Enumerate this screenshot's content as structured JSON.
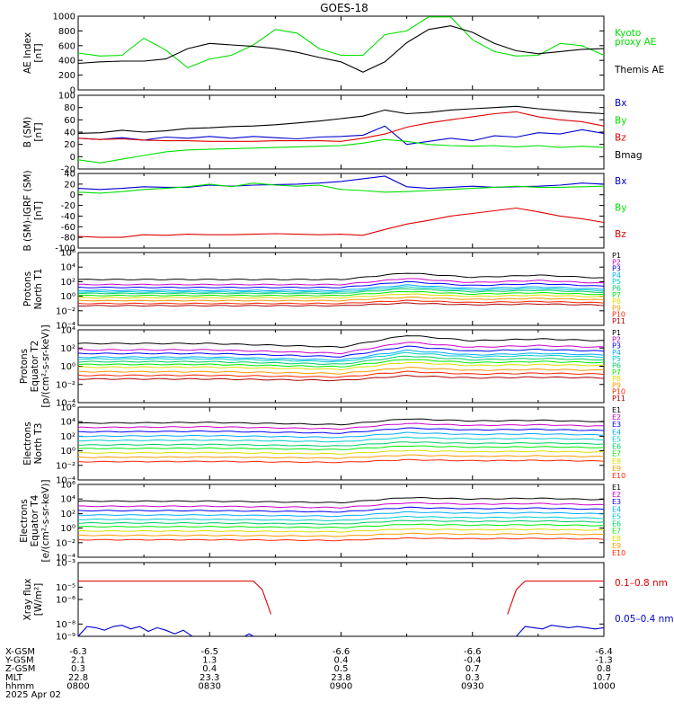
{
  "title": "GOES-18",
  "colors": {
    "black": "#000000",
    "blue": "#0000d0",
    "green": "#00e000",
    "red": "#e00000",
    "p": [
      "#000000",
      "#cc00cc",
      "#0000ff",
      "#00aaff",
      "#00cccc",
      "#00cc66",
      "#00ee00",
      "#dddd00",
      "#ff9900",
      "#ff2200",
      "#aa0000"
    ],
    "e": [
      "#000000",
      "#cc00cc",
      "#0000ff",
      "#00aaff",
      "#00cccc",
      "#00cc66",
      "#00ee00",
      "#dddd00",
      "#ff9900",
      "#ff2200",
      "#aa0000"
    ]
  },
  "chart_data": [
    {
      "type": "line",
      "panel": "ae",
      "log": false,
      "ylabel": [
        "AE Index",
        "[nT]"
      ],
      "ylim": [
        0,
        1000
      ],
      "ticks": [
        {
          "v": 0,
          "t": "0"
        },
        {
          "v": 200,
          "t": "200"
        },
        {
          "v": 400,
          "t": "400"
        },
        {
          "v": 600,
          "t": "600"
        },
        {
          "v": 800,
          "t": "800"
        },
        {
          "v": 1000,
          "t": "1000"
        }
      ],
      "legend": [
        {
          "text": "Kyoto",
          "color": "#00e000"
        },
        {
          "text": "proxy AE",
          "color": "#00e000"
        },
        {
          "text": "Themis AE",
          "color": "#000000"
        }
      ],
      "x": [
        0,
        5,
        10,
        15,
        20,
        25,
        30,
        35,
        40,
        45,
        50,
        55,
        60,
        65,
        70,
        75,
        80,
        85,
        90,
        95,
        100,
        105,
        110,
        115,
        120
      ],
      "series": [
        {
          "name": "Kyoto proxy AE",
          "color": "#00e000",
          "values": [
            500,
            460,
            470,
            700,
            540,
            300,
            420,
            470,
            610,
            820,
            770,
            560,
            470,
            470,
            750,
            800,
            990,
            990,
            680,
            520,
            460,
            470,
            630,
            600,
            470
          ]
        },
        {
          "name": "Themis AE",
          "color": "#000000",
          "values": [
            360,
            380,
            390,
            390,
            420,
            560,
            630,
            610,
            590,
            560,
            510,
            440,
            380,
            240,
            380,
            640,
            820,
            870,
            780,
            630,
            530,
            490,
            520,
            550,
            560
          ]
        }
      ]
    },
    {
      "type": "line",
      "panel": "bsm",
      "log": false,
      "ylabel": [
        "B (SM)",
        "[nT]"
      ],
      "ylim": [
        -20,
        100
      ],
      "ticks": [
        {
          "v": -20,
          "t": "-20"
        },
        {
          "v": 0,
          "t": "0"
        },
        {
          "v": 20,
          "t": "20"
        },
        {
          "v": 40,
          "t": "40"
        },
        {
          "v": 60,
          "t": "60"
        },
        {
          "v": 80,
          "t": "80"
        },
        {
          "v": 100,
          "t": "100"
        }
      ],
      "legend": [
        {
          "text": "Bx",
          "color": "#0000d0"
        },
        {
          "text": "By",
          "color": "#00e000"
        },
        {
          "text": "Bz",
          "color": "#e00000"
        },
        {
          "text": "Bmag",
          "color": "#000000"
        }
      ],
      "x": [
        0,
        5,
        10,
        15,
        20,
        25,
        30,
        35,
        40,
        45,
        50,
        55,
        60,
        65,
        70,
        75,
        80,
        85,
        90,
        95,
        100,
        105,
        110,
        115,
        120
      ],
      "series": [
        {
          "name": "Bx",
          "color": "#0000d0",
          "values": [
            30,
            28,
            31,
            27,
            32,
            30,
            33,
            30,
            33,
            31,
            29,
            32,
            33,
            35,
            50,
            20,
            25,
            30,
            26,
            34,
            32,
            39,
            37,
            44,
            38
          ]
        },
        {
          "name": "By",
          "color": "#00e000",
          "values": [
            -5,
            -10,
            -4,
            2,
            8,
            11,
            12,
            13,
            14,
            15,
            16,
            17,
            18,
            22,
            28,
            25,
            20,
            18,
            17,
            18,
            16,
            18,
            15,
            17,
            15
          ]
        },
        {
          "name": "Bz",
          "color": "#e00000",
          "values": [
            30,
            28,
            29,
            27,
            26,
            26,
            25,
            25,
            25,
            26,
            26,
            26,
            25,
            30,
            37,
            48,
            55,
            60,
            65,
            70,
            73,
            65,
            60,
            57,
            50
          ]
        },
        {
          "name": "Bmag",
          "color": "#000000",
          "values": [
            38,
            39,
            43,
            40,
            42,
            46,
            47,
            49,
            50,
            52,
            55,
            58,
            62,
            66,
            76,
            70,
            72,
            76,
            78,
            80,
            82,
            78,
            75,
            72,
            70
          ]
        }
      ]
    },
    {
      "type": "line",
      "panel": "bigrf",
      "log": false,
      "ylabel": [
        "B (SM)-IGRF (SM)",
        "[nT]"
      ],
      "ylim": [
        -100,
        40
      ],
      "ticks": [
        {
          "v": -100,
          "t": "-100"
        },
        {
          "v": -80,
          "t": "-80"
        },
        {
          "v": -60,
          "t": "-60"
        },
        {
          "v": -40,
          "t": "-40"
        },
        {
          "v": -20,
          "t": "-20"
        },
        {
          "v": 0,
          "t": "0"
        },
        {
          "v": 20,
          "t": "20"
        },
        {
          "v": 40,
          "t": "40"
        }
      ],
      "legend": [
        {
          "text": "Bx",
          "color": "#0000d0"
        },
        {
          "text": "By",
          "color": "#00e000"
        },
        {
          "text": "Bz",
          "color": "#e00000"
        }
      ],
      "x": [
        0,
        5,
        10,
        15,
        20,
        25,
        30,
        35,
        40,
        45,
        50,
        55,
        60,
        65,
        70,
        75,
        80,
        85,
        90,
        95,
        100,
        105,
        110,
        115,
        120
      ],
      "series": [
        {
          "name": "Bx",
          "color": "#0000d0",
          "values": [
            12,
            10,
            12,
            15,
            14,
            14,
            18,
            16,
            18,
            19,
            20,
            22,
            25,
            30,
            35,
            15,
            12,
            14,
            16,
            14,
            15,
            16,
            18,
            22,
            20
          ]
        },
        {
          "name": "By",
          "color": "#00e000",
          "values": [
            5,
            3,
            6,
            10,
            12,
            15,
            20,
            15,
            22,
            18,
            16,
            18,
            10,
            8,
            5,
            6,
            8,
            10,
            12,
            14,
            16,
            14,
            14,
            15,
            16
          ]
        },
        {
          "name": "Bz",
          "color": "#e00000",
          "values": [
            -78,
            -80,
            -80,
            -75,
            -76,
            -74,
            -75,
            -75,
            -74,
            -73,
            -74,
            -75,
            -74,
            -76,
            -65,
            -55,
            -48,
            -40,
            -35,
            -30,
            -25,
            -32,
            -40,
            -45,
            -52
          ]
        }
      ]
    },
    {
      "type": "line",
      "panel": "pn",
      "log": true,
      "ylabel": [
        "Protons",
        "North T1"
      ],
      "ylim": [
        -4,
        6
      ],
      "ticks": [
        {
          "v": -4,
          "t": "10⁻⁴"
        },
        {
          "v": -2,
          "t": "10⁻²"
        },
        {
          "v": 0,
          "t": "10⁰"
        },
        {
          "v": 2,
          "t": "10²"
        },
        {
          "v": 4,
          "t": "10⁴"
        },
        {
          "v": 6,
          "t": "10⁶"
        }
      ],
      "channels": [
        "P1",
        "P2",
        "P3",
        "P4",
        "P5",
        "P6",
        "P7",
        "P8",
        "P9",
        "P10",
        "P11"
      ],
      "levels_log10": [
        2.3,
        1.6,
        1.2,
        0.8,
        0.6,
        0.4,
        0.1,
        -0.2,
        -0.6,
        -1.0,
        -1.3
      ],
      "shape_x": [
        0,
        30,
        60,
        75,
        90,
        105,
        120
      ],
      "shape_dlog": [
        0,
        0,
        0,
        0.9,
        0.3,
        0.6,
        0.2
      ]
    },
    {
      "type": "line",
      "panel": "pe",
      "log": true,
      "ylabel": [
        "Protons",
        "Equator T2",
        "[p/(cm²-s-sr-keV)]"
      ],
      "ylim": [
        -4,
        4
      ],
      "ticks": [
        {
          "v": -4,
          "t": "10⁻⁴"
        },
        {
          "v": -2,
          "t": "10⁻²"
        },
        {
          "v": 0,
          "t": "10⁰"
        },
        {
          "v": 2,
          "t": "10²"
        },
        {
          "v": 4,
          "t": "10⁴"
        }
      ],
      "channels": [
        "P1",
        "P2",
        "P3",
        "P4",
        "P5",
        "P6",
        "P7",
        "P8",
        "P9",
        "P10",
        "P11"
      ],
      "levels_log10": [
        2.5,
        1.8,
        1.4,
        1.0,
        0.8,
        0.5,
        0.2,
        -0.1,
        -0.6,
        -1.0,
        -1.4
      ],
      "shape_x": [
        0,
        30,
        60,
        75,
        90,
        105,
        120
      ],
      "shape_dlog": [
        0,
        0,
        -0.4,
        0.9,
        0.3,
        0.5,
        0.3
      ]
    },
    {
      "type": "line",
      "panel": "en",
      "log": true,
      "ylabel": [
        "Electrons",
        "North T3"
      ],
      "ylim": [
        -4,
        6
      ],
      "ticks": [
        {
          "v": -4,
          "t": "10⁻⁴"
        },
        {
          "v": -2,
          "t": "10⁻²"
        },
        {
          "v": 0,
          "t": "10⁰"
        },
        {
          "v": 2,
          "t": "10²"
        },
        {
          "v": 4,
          "t": "10⁴"
        },
        {
          "v": 6,
          "t": "10⁶"
        }
      ],
      "channels": [
        "E1",
        "E2",
        "E3",
        "E4",
        "E5",
        "E6",
        "E7",
        "E8",
        "E9",
        "E10"
      ],
      "levels_log10": [
        3.8,
        3.2,
        2.6,
        2.0,
        1.4,
        0.8,
        0.3,
        -0.3,
        -0.9,
        -1.5
      ],
      "shape_x": [
        0,
        30,
        60,
        75,
        90,
        105,
        120
      ],
      "shape_dlog": [
        0,
        0.1,
        -0.2,
        0.6,
        0.3,
        0.4,
        0.2
      ]
    },
    {
      "type": "line",
      "panel": "ee",
      "log": true,
      "ylabel": [
        "Electrons",
        "Equator T4",
        "[e/(cm²-s-sr-keV)]"
      ],
      "ylim": [
        -4,
        6
      ],
      "ticks": [
        {
          "v": -4,
          "t": "10⁻⁴"
        },
        {
          "v": -2,
          "t": "10⁻²"
        },
        {
          "v": 0,
          "t": "10⁰"
        },
        {
          "v": 2,
          "t": "10²"
        },
        {
          "v": 4,
          "t": "10⁴"
        },
        {
          "v": 6,
          "t": "10⁶"
        }
      ],
      "channels": [
        "E1",
        "E2",
        "E3",
        "E4",
        "E5",
        "E6",
        "E7",
        "E8",
        "E9",
        "E10"
      ],
      "levels_log10": [
        3.7,
        3.0,
        2.4,
        1.8,
        1.2,
        0.7,
        0.2,
        -0.4,
        -1.0,
        -1.6
      ],
      "shape_x": [
        0,
        30,
        60,
        75,
        90,
        105,
        120
      ],
      "shape_dlog": [
        0,
        0,
        -0.2,
        0.5,
        0.3,
        0.4,
        0.2
      ]
    },
    {
      "type": "line",
      "panel": "xray",
      "log": true,
      "ylabel": [
        "Xray flux",
        "[W/m²]"
      ],
      "ylim": [
        -9,
        -3
      ],
      "ticks": [
        {
          "v": -9,
          "t": "10⁻⁹"
        },
        {
          "v": -8,
          "t": "10⁻⁸"
        },
        {
          "v": -6,
          "t": "10⁻⁶"
        },
        {
          "v": -5,
          "t": "10⁻⁵"
        },
        {
          "v": -3,
          "t": "10⁻³"
        }
      ],
      "legend": [
        {
          "text": "0.1–0.8 nm",
          "color": "#e00000"
        },
        {
          "text": "0.05–0.4 nm",
          "color": "#0000d0"
        }
      ],
      "series": [
        {
          "name": "0.1–0.8 nm",
          "color": "#e00000",
          "segments": [
            {
              "x": [
                0,
                40,
                42,
                44
              ],
              "values": [
                -4.5,
                -4.5,
                -5.2,
                -7.2
              ]
            },
            {
              "x": [
                98,
                100,
                102,
                120
              ],
              "values": [
                -7.2,
                -5.2,
                -4.5,
                -4.5
              ]
            }
          ]
        },
        {
          "name": "0.05–0.4 nm",
          "color": "#0000d0",
          "segments": [
            {
              "x": [
                0,
                2,
                4,
                6,
                8,
                10,
                12,
                14,
                16,
                18,
                20,
                22,
                24,
                26
              ],
              "values": [
                -9.0,
                -8.2,
                -8.3,
                -8.5,
                -8.2,
                -8.1,
                -8.4,
                -8.2,
                -8.6,
                -8.3,
                -8.5,
                -8.8,
                -8.5,
                -9.0
              ]
            },
            {
              "x": [
                38,
                39,
                40
              ],
              "values": [
                -9.0,
                -8.8,
                -9.0
              ]
            },
            {
              "x": [
                100,
                102,
                104,
                106,
                108,
                110,
                112,
                114,
                116,
                118,
                120
              ],
              "values": [
                -9.0,
                -8.2,
                -8.3,
                -8.4,
                -8.1,
                -8.2,
                -8.3,
                -8.2,
                -8.3,
                -8.4,
                -8.3
              ]
            }
          ]
        }
      ]
    }
  ],
  "time_axis": {
    "rows": [
      {
        "label": "X-GSM",
        "values": [
          "-6.3",
          "-6.5",
          "-6.6",
          "-6.6",
          "-6.4"
        ]
      },
      {
        "label": "Y-GSM",
        "values": [
          "2.1",
          "1.3",
          "0.4",
          "-0.4",
          "-1.3"
        ]
      },
      {
        "label": "Z-GSM",
        "values": [
          "0.3",
          "0.4",
          "0.5",
          "0.7",
          "0.8"
        ]
      },
      {
        "label": "MLT",
        "values": [
          "22.8",
          "23.3",
          "23.8",
          "0.3",
          "0.7"
        ]
      },
      {
        "label": "hhmm",
        "values": [
          "0800",
          "0830",
          "0900",
          "0930",
          "1000"
        ]
      }
    ],
    "date": "2025 Apr 02",
    "tick_minutes": [
      0,
      30,
      60,
      90,
      120
    ]
  }
}
